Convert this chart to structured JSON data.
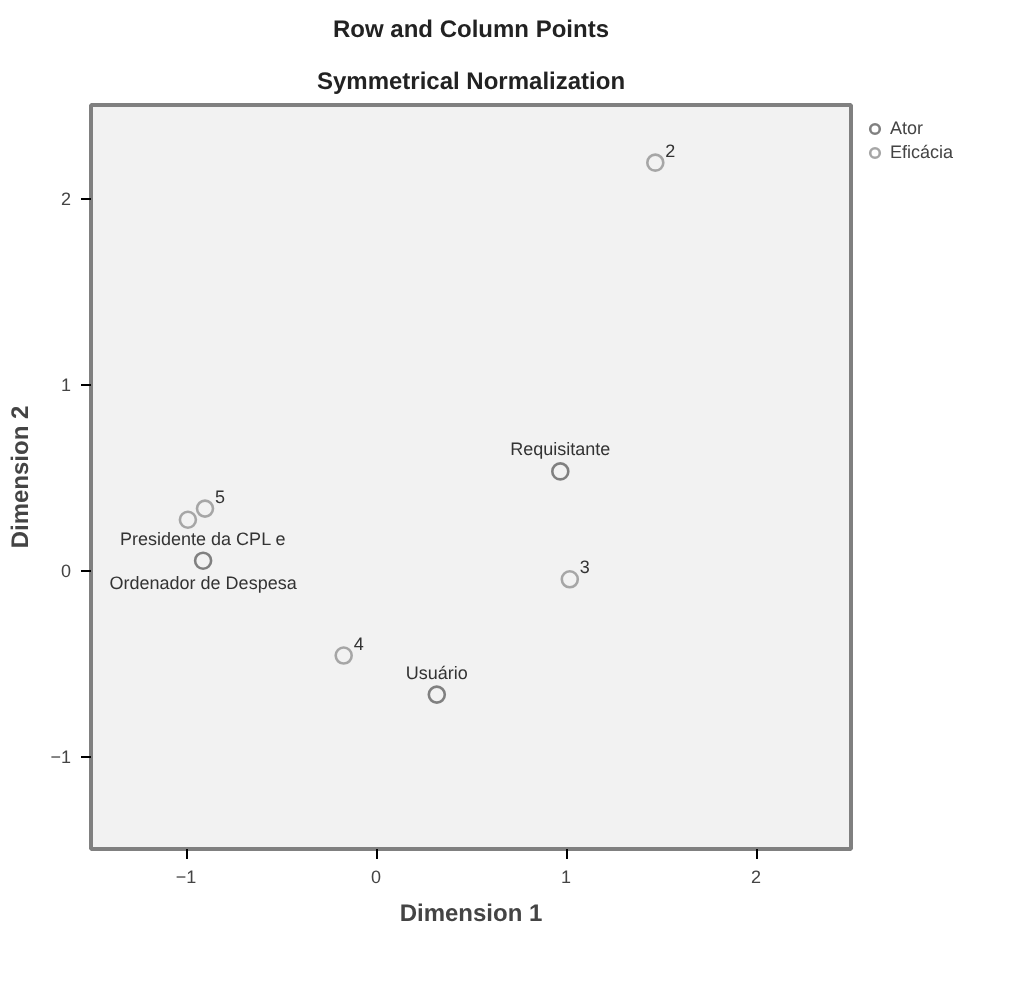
{
  "chart_data": {
    "type": "scatter",
    "title": "Row and Column Points",
    "subtitle": "Symmetrical Normalization",
    "xlabel": "Dimension 1",
    "ylabel": "Dimension 2",
    "xlim": [
      -1.5,
      2.5
    ],
    "ylim": [
      -1.5,
      2.5
    ],
    "xticks": [
      -1,
      0,
      1,
      2
    ],
    "yticks": [
      -1,
      0,
      1,
      2
    ],
    "legend": "top right",
    "marker": "circle",
    "series": [
      {
        "name": "Ator",
        "color": "#808080",
        "x": [
          0.97,
          -0.91,
          0.32
        ],
        "values": [
          0.53,
          0.05,
          -0.67
        ]
      },
      {
        "name": "Eficácia",
        "color": "#a6a6a6",
        "x": [
          -0.99,
          1.47,
          1.02,
          -0.17,
          -0.9
        ],
        "values": [
          0.27,
          2.19,
          -0.05,
          -0.46,
          0.33
        ]
      }
    ],
    "annotations": [
      {
        "text": "Requisitante",
        "x": 0.97,
        "y": 0.53
      },
      {
        "text": "Presidente da CPL e",
        "x": -0.91,
        "y": 0.05
      },
      {
        "text": "Ordenador de Despesa",
        "x": -0.91,
        "y": 0.05
      },
      {
        "text": "Usuário",
        "x": 0.32,
        "y": -0.67
      },
      {
        "text": "2",
        "x": 1.47,
        "y": 2.19
      },
      {
        "text": "3",
        "x": 1.02,
        "y": -0.05
      },
      {
        "text": "4",
        "x": -0.17,
        "y": -0.46
      },
      {
        "text": "5",
        "x": -0.9,
        "y": 0.33
      }
    ]
  }
}
